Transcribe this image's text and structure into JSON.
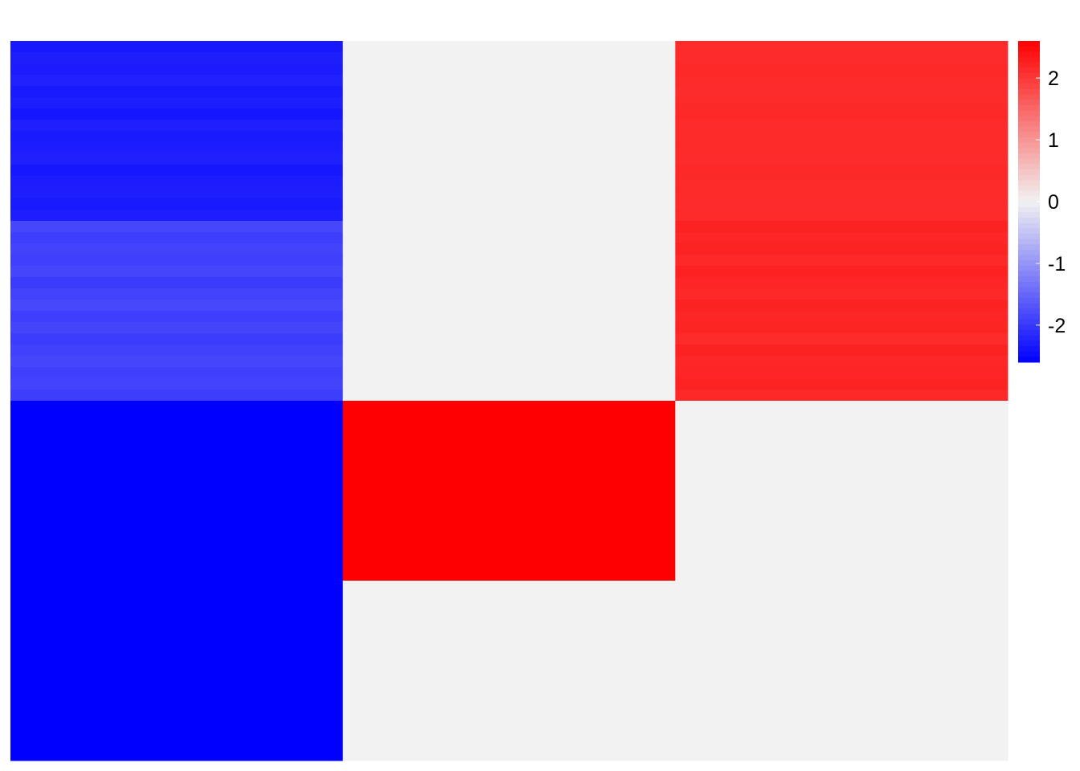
{
  "chart_data": {
    "type": "heatmap",
    "title": "",
    "xlabel": "",
    "ylabel": "",
    "columns": 3,
    "rows": 4,
    "row_blocks": [
      {
        "values": [
          -2.3,
          0.0,
          2.15
        ],
        "stripes": [
          [
            -2.34,
            -2.28,
            -2.31,
            -2.25,
            -2.33,
            -2.29,
            -2.36,
            -2.27,
            -2.32,
            -2.3,
            -2.26,
            -2.35,
            -2.3,
            -2.28,
            -2.33,
            -2.29
          ],
          null,
          [
            2.15,
            2.14,
            2.16,
            2.15,
            2.13,
            2.15,
            2.16,
            2.14,
            2.15,
            2.15,
            2.14,
            2.16,
            2.15,
            2.15,
            2.14,
            2.15
          ]
        ]
      },
      {
        "values": [
          -1.9,
          0.0,
          2.2
        ],
        "stripes": [
          [
            -1.85,
            -1.95,
            -1.88,
            -1.92,
            -1.86,
            -1.97,
            -1.89,
            -1.84,
            -1.93,
            -1.87,
            -1.96,
            -1.9,
            -1.86,
            -1.91,
            -1.88,
            -1.94
          ],
          null,
          [
            2.24,
            2.18,
            2.22,
            2.16,
            2.25,
            2.2,
            2.17,
            2.23,
            2.19,
            2.21,
            2.15,
            2.24,
            2.18,
            2.2,
            2.22,
            2.16
          ]
        ]
      },
      {
        "values": [
          -2.6,
          2.6,
          0.0
        ]
      },
      {
        "values": [
          -2.6,
          0.0,
          0.0
        ]
      }
    ],
    "colorscale": {
      "min": -2.6,
      "max": 2.6,
      "low": "#0000FF",
      "mid": "#F2F2F2",
      "high": "#FF0000"
    },
    "legend": {
      "position": "right",
      "ticks": [
        2,
        1,
        0,
        -1,
        -2
      ],
      "tick_labels": [
        "2",
        "1",
        "0",
        "-1",
        "-2"
      ]
    }
  }
}
